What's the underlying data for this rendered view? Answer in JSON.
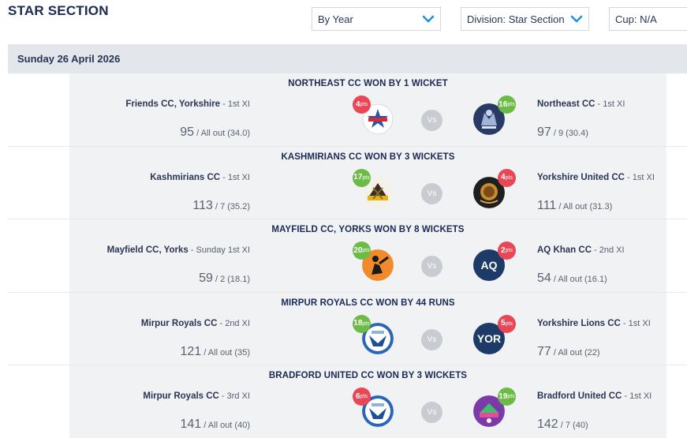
{
  "section": {
    "title": "STAR SECTION"
  },
  "filters": {
    "period": "By Year",
    "division": "Division: Star Section",
    "cup": "Cup: N/A"
  },
  "date": "Sunday 26 April 2026",
  "vs_label": "Vs",
  "points_unit": "pts",
  "colors": {
    "points_loss": "#ea4756",
    "points_win": "#6cbb46",
    "navy": "#1b2a55"
  },
  "matches": [
    {
      "result": "NORTHEAST CC WON BY 1 WICKET",
      "home": {
        "name": "Friends CC, Yorkshire",
        "xi": " - 1st XI",
        "points": "4",
        "score": "95",
        "detail": " / All out (34.0)",
        "logo": "friends-cc-logo"
      },
      "away": {
        "name": "Northeast CC",
        "xi": " - 1st XI",
        "points": "16",
        "score": "97",
        "detail": " / 9 (30.4)",
        "logo": "northeast-cc-logo"
      }
    },
    {
      "result": "KASHMIRIANS CC WON BY 3 WICKETS",
      "home": {
        "name": "Kashmirians CC",
        "xi": " - 1st XI",
        "points": "17",
        "score": "113",
        "detail": " / 7 (35.2)",
        "logo": "kashmirians-cc-logo"
      },
      "away": {
        "name": "Yorkshire United CC",
        "xi": " - 1st XI",
        "points": "4",
        "score": "111",
        "detail": " / All out (31.3)",
        "logo": "yorkshire-united-cc-logo"
      }
    },
    {
      "result": "MAYFIELD CC, YORKS WON BY 8 WICKETS",
      "home": {
        "name": "Mayfield CC, Yorks",
        "xi": " - Sunday 1st XI",
        "points": "20",
        "score": "59",
        "detail": " / 2 (18.1)",
        "logo": "mayfield-cc-logo"
      },
      "away": {
        "name": "AQ Khan CC",
        "xi": " - 2nd XI",
        "points": "2",
        "score": "54",
        "detail": " / All out (16.1)",
        "logo_text": "AQ"
      }
    },
    {
      "result": "MIRPUR ROYALS CC WON BY 44 RUNS",
      "home": {
        "name": "Mirpur Royals CC",
        "xi": " - 2nd XI",
        "points": "18",
        "score": "121",
        "detail": " / All out (35)",
        "logo": "mirpur-royals-cc-logo"
      },
      "away": {
        "name": "Yorkshire Lions CC",
        "xi": " - 1st XI",
        "points": "5",
        "score": "77",
        "detail": " / All out (22)",
        "logo_text": "YOR"
      }
    },
    {
      "result": "BRADFORD UNITED CC WON BY 3 WICKETS",
      "home": {
        "name": "Mirpur Royals CC",
        "xi": " - 3rd XI",
        "points": "6",
        "score": "141",
        "detail": " / All out (40)",
        "logo": "mirpur-royals-cc-logo"
      },
      "away": {
        "name": "Bradford United CC",
        "xi": " - 1st XI",
        "points": "19",
        "score": "142",
        "detail": " / 7 (40)",
        "logo": "bradford-united-cc-logo"
      }
    }
  ]
}
